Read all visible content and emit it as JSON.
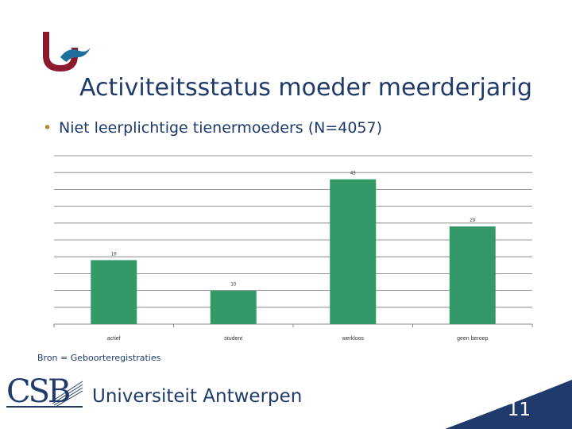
{
  "slide": {
    "title": "Activiteitsstatus moeder meerderjarig",
    "bullet": "Niet leerplichtige tienermoeders (N=4057)",
    "source": "Bron = Geboorteregistraties",
    "university": "Universiteit Antwerpen",
    "csb_label": "CSB",
    "slide_number": "11"
  },
  "colors": {
    "title": "#1f3a6b",
    "bar": "#339966",
    "logo_red": "#8b1a2e",
    "logo_blue": "#1f6f9e",
    "footer_blue": "#1f3a6b"
  },
  "chart_data": {
    "type": "bar",
    "categories": [
      "actief",
      "student",
      "werkloos",
      "geen beroep"
    ],
    "values": [
      19,
      10,
      43,
      29
    ],
    "ylim": [
      0,
      50
    ],
    "grid": true,
    "legend": "none"
  }
}
